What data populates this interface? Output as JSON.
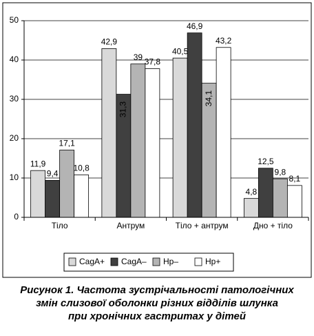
{
  "chart_data": {
    "type": "bar",
    "categories": [
      "Тіло",
      "Антрум",
      "Тіло + антрум",
      "Дно + тіло"
    ],
    "series": [
      {
        "name": "CagA+",
        "color": "#d9d9d9",
        "values": [
          11.9,
          42.9,
          40.5,
          4.8
        ],
        "value_labels": [
          "11,9",
          "42,9",
          "40,5",
          "4,8"
        ]
      },
      {
        "name": "CagA–",
        "color": "#404040",
        "values": [
          9.4,
          31.3,
          46.9,
          12.5
        ],
        "value_labels": [
          "9,4",
          "31,3",
          "46,9",
          "12,5"
        ]
      },
      {
        "name": "Hp–",
        "color": "#b4b4b4",
        "values": [
          17.1,
          39,
          34.1,
          9.8
        ],
        "value_labels": [
          "17,1",
          "39",
          "34,1",
          "9,8"
        ]
      },
      {
        "name": "Hp+",
        "color": "#ffffff",
        "values": [
          10.8,
          37.8,
          43.2,
          8.1
        ],
        "value_labels": [
          "10,8",
          "37,8",
          "43,2",
          "8,1"
        ]
      }
    ],
    "ylim": [
      0,
      50
    ],
    "yticks": [
      0,
      10,
      20,
      30,
      40,
      50
    ],
    "grid": true,
    "caption": [
      "Рисунок 1. Частота зустрічальності патологічних",
      "змін слизової оболонки різних відділів шлунка",
      "при хронічних гастритах у дітей"
    ]
  }
}
